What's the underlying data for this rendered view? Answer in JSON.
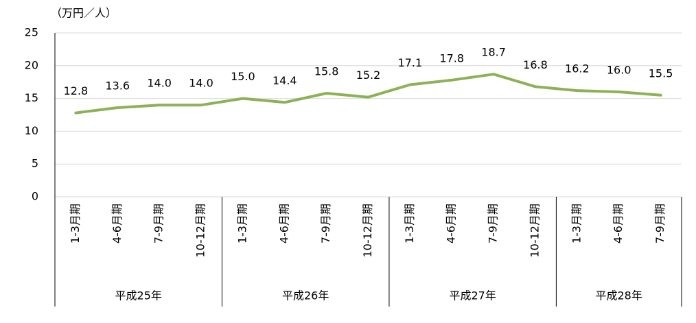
{
  "chart_data": {
    "type": "line",
    "y_axis_label": "（万円／人）",
    "categories": [
      "1-3月期",
      "4-6月期",
      "7-9月期",
      "10-12月期",
      "1-3月期",
      "4-6月期",
      "7-9月期",
      "10-12月期",
      "1-3月期",
      "4-6月期",
      "7-9月期",
      "10-12月期",
      "1-3月期",
      "4-6月期",
      "7-9月期"
    ],
    "category_groups": [
      {
        "label": "平成25年",
        "size": 4
      },
      {
        "label": "平成26年",
        "size": 4
      },
      {
        "label": "平成27年",
        "size": 4
      },
      {
        "label": "平成28年",
        "size": 3
      }
    ],
    "values": [
      12.8,
      13.6,
      14.0,
      14.0,
      15.0,
      14.4,
      15.8,
      15.2,
      17.1,
      17.8,
      18.7,
      16.8,
      16.2,
      16.0,
      15.5
    ],
    "value_labels": [
      "12.8",
      "13.6",
      "14.0",
      "14.0",
      "15.0",
      "14.4",
      "15.8",
      "15.2",
      "17.1",
      "17.8",
      "18.7",
      "16.8",
      "16.2",
      "16.0",
      "15.5"
    ],
    "color": "#8db255",
    "ylim": [
      0,
      25
    ],
    "yticks": [
      0,
      5,
      10,
      15,
      20,
      25
    ],
    "grid": true
  }
}
